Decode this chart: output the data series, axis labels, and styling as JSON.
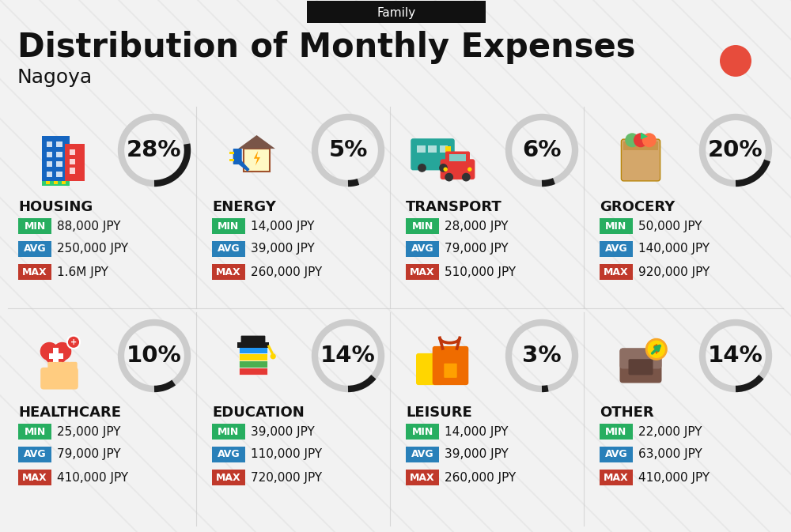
{
  "title": "Distribution of Monthly Expenses",
  "subtitle": "Nagoya",
  "category_label": "Family",
  "bg_color": "#f2f2f2",
  "categories": [
    {
      "name": "HOUSING",
      "pct": 28,
      "min": "88,000 JPY",
      "avg": "250,000 JPY",
      "max": "1.6M JPY",
      "col": 0,
      "row": 0
    },
    {
      "name": "ENERGY",
      "pct": 5,
      "min": "14,000 JPY",
      "avg": "39,000 JPY",
      "max": "260,000 JPY",
      "col": 1,
      "row": 0
    },
    {
      "name": "TRANSPORT",
      "pct": 6,
      "min": "28,000 JPY",
      "avg": "79,000 JPY",
      "max": "510,000 JPY",
      "col": 2,
      "row": 0
    },
    {
      "name": "GROCERY",
      "pct": 20,
      "min": "50,000 JPY",
      "avg": "140,000 JPY",
      "max": "920,000 JPY",
      "col": 3,
      "row": 0
    },
    {
      "name": "HEALTHCARE",
      "pct": 10,
      "min": "25,000 JPY",
      "avg": "79,000 JPY",
      "max": "410,000 JPY",
      "col": 0,
      "row": 1
    },
    {
      "name": "EDUCATION",
      "pct": 14,
      "min": "39,000 JPY",
      "avg": "110,000 JPY",
      "max": "720,000 JPY",
      "col": 1,
      "row": 1
    },
    {
      "name": "LEISURE",
      "pct": 3,
      "min": "14,000 JPY",
      "avg": "39,000 JPY",
      "max": "260,000 JPY",
      "col": 2,
      "row": 1
    },
    {
      "name": "OTHER",
      "pct": 14,
      "min": "22,000 JPY",
      "avg": "63,000 JPY",
      "max": "410,000 JPY",
      "col": 3,
      "row": 1
    }
  ],
  "min_color": "#27ae60",
  "avg_color": "#2980b9",
  "max_color": "#c0392b",
  "white": "#ffffff",
  "dark": "#111111",
  "circle_dark": "#1a1a1a",
  "circle_light": "#cccccc",
  "red_dot": "#e74c3c",
  "stripe_color": "#e0e0e0",
  "col_starts": [
    15,
    260,
    505,
    750
  ],
  "row_tops": [
    140,
    400
  ],
  "donut_r": 42,
  "title_fs": 30,
  "sub_fs": 18,
  "pct_fs": 21,
  "cat_fs": 13,
  "val_fs": 11,
  "badge_fs": 9
}
